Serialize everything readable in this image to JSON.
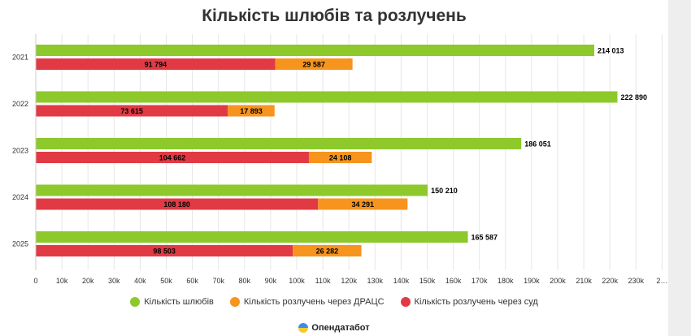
{
  "colors": {
    "marriages": "#8dc92b",
    "divorces_registry": "#f7941d",
    "divorces_court": "#e23a44"
  },
  "brand": {
    "name": "Опендатабот",
    "icon": "opendatabot-logo-icon"
  },
  "chart_data": {
    "type": "bar",
    "orientation": "horizontal",
    "title": "Кількість шлюбів та розлучень",
    "categories": [
      "2021",
      "2022",
      "2023",
      "2024",
      "2025"
    ],
    "series": [
      {
        "name": "Кількість шлюбів",
        "values": [
          214013,
          222890,
          186051,
          150210,
          165587
        ],
        "labels": [
          "214 013",
          "222 890",
          "186 051",
          "150 210",
          "165 587"
        ],
        "stack": "a"
      },
      {
        "name": "Кількість розлучень через суд",
        "values": [
          91794,
          73615,
          104662,
          108180,
          98503
        ],
        "labels": [
          "91 794",
          "73 615",
          "104 662",
          "108 180",
          "98 503"
        ],
        "stack": "b"
      },
      {
        "name": "Кількість розлучень через ДРАЦС",
        "values": [
          29587,
          17893,
          24108,
          34291,
          26282
        ],
        "labels": [
          "29 587",
          "17 893",
          "24 108",
          "34 291",
          "26 282"
        ],
        "stack": "b"
      }
    ],
    "legend": [
      "Кількість шлюбів",
      "Кількість розлучень через ДРАЦС",
      "Кількість розлучень через суд"
    ],
    "xlim": [
      0,
      240000
    ],
    "x_ticks": [
      "0",
      "10k",
      "20k",
      "30k",
      "40k",
      "50k",
      "60k",
      "70k",
      "80k",
      "90k",
      "100k",
      "110k",
      "120k",
      "130k",
      "140k",
      "150k",
      "160k",
      "170k",
      "180k",
      "190k",
      "200k",
      "210k",
      "220k",
      "230k",
      "2…"
    ],
    "grid": true,
    "legend_position": "bottom"
  }
}
